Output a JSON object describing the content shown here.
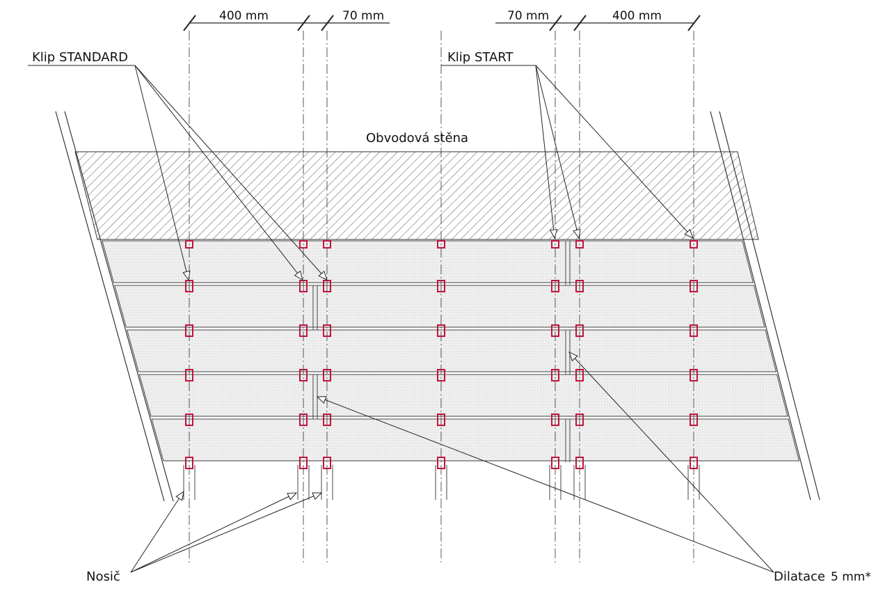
{
  "dimensions": {
    "left_a": "400 mm",
    "left_b": "70 mm",
    "right_a": "70 mm",
    "right_b": "400 mm"
  },
  "labels": {
    "klip_standard": "Klip STANDARD",
    "klip_start": "Klip START",
    "wall": "Obvodová stěna",
    "nosic": "Nosič",
    "dilatace": "Dilatace",
    "dilatace_value": "5 mm*"
  },
  "colors": {
    "clip": "#c0143c",
    "line": "#222222",
    "board_fill": "#ececec",
    "wall_hatch": "#444444"
  }
}
